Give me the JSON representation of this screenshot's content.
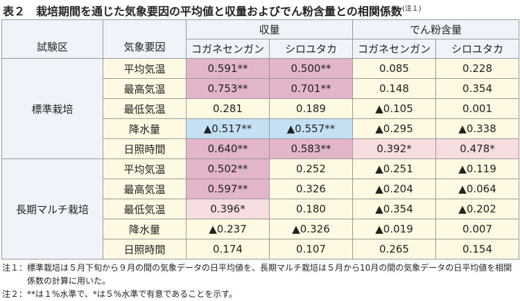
{
  "title": "表２　栽培期間を通じた気象要因の平均値と収量およびでん粉含量との相関係数",
  "title_note": "(注１)",
  "table": {
    "header": {
      "plot": "試験区",
      "factor": "気象要因",
      "groups": [
        "収量",
        "でん粉含量"
      ],
      "varieties": [
        "コガネセンガン",
        "シロユタカ",
        "コガネセンガン",
        "シロユタカ"
      ]
    },
    "sections": [
      {
        "name": "標準栽培",
        "rows": [
          {
            "factor": "平均気温",
            "values": [
              "0.591**",
              "0.500**",
              "0.085",
              "0.228"
            ]
          },
          {
            "factor": "最高気温",
            "values": [
              "0.753**",
              "0.701**",
              "0.148",
              "0.354"
            ]
          },
          {
            "factor": "最低気温",
            "values": [
              "0.281",
              "0.189",
              "▲0.105",
              "0.001"
            ]
          },
          {
            "factor": "降水量",
            "values": [
              "▲0.517**",
              "▲0.557**",
              "▲0.295",
              "▲0.338"
            ]
          },
          {
            "factor": "日照時間",
            "values": [
              "0.640**",
              "0.583**",
              "0.392*",
              "0.478*"
            ]
          }
        ]
      },
      {
        "name": "長期マルチ栽培",
        "rows": [
          {
            "factor": "平均気温",
            "values": [
              "0.502**",
              "0.252",
              "▲0.251",
              "▲0.119"
            ]
          },
          {
            "factor": "最高気温",
            "values": [
              "0.597**",
              "0.326",
              "▲0.204",
              "▲0.064"
            ]
          },
          {
            "factor": "最低気温",
            "values": [
              "0.396*",
              "0.180",
              "▲0.354",
              "▲0.202"
            ]
          },
          {
            "factor": "降水量",
            "values": [
              "▲0.237",
              "▲0.326",
              "▲0.019",
              "0.007"
            ]
          },
          {
            "factor": "日照時間",
            "values": [
              "0.174",
              "0.107",
              "0.265",
              "0.154"
            ]
          }
        ]
      }
    ]
  },
  "notes": [
    "注１：標準栽培は５月下旬から９月の間の気象データの日平均値を、長期マルチ栽培は５月から10月の間の気象データの日平均値を相関係数の計算に用いた。",
    "注２：**は１%水準で、*は５%水準で有意であることを示す。"
  ]
}
